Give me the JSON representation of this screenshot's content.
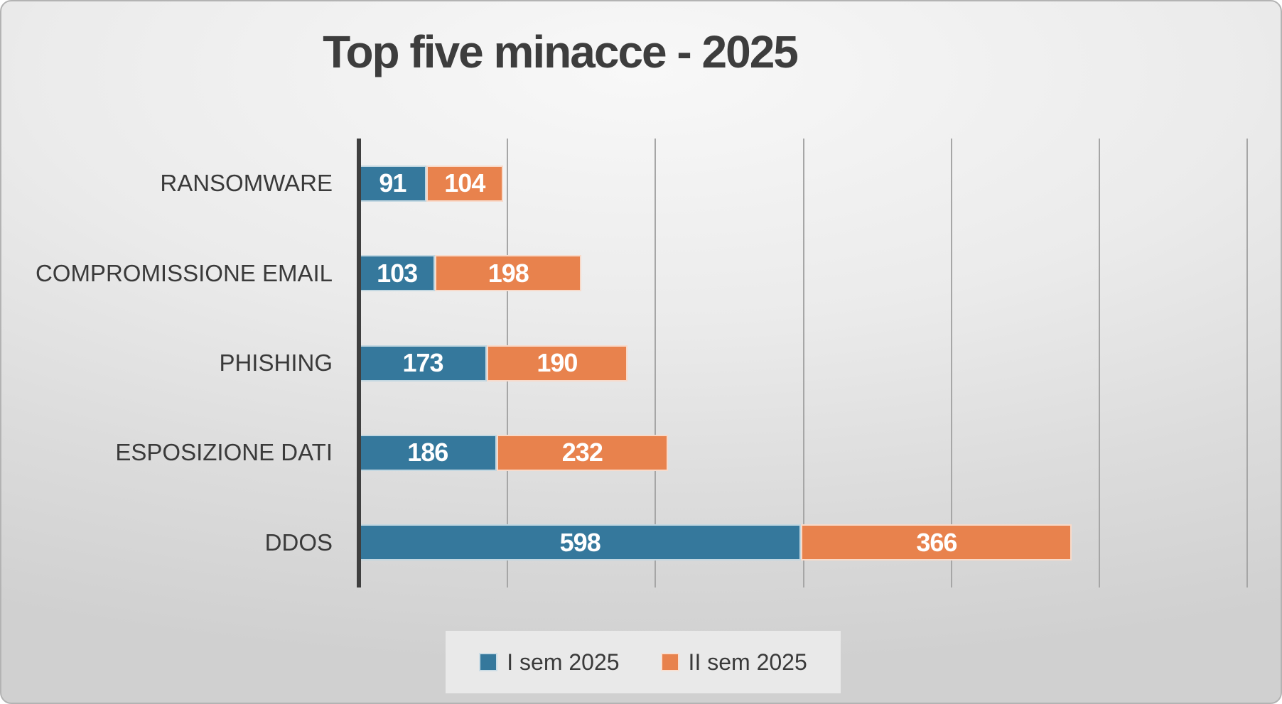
{
  "title": "Top five minacce - 2025",
  "colors": {
    "series1": "#35789C",
    "series2": "#E8824D",
    "axis": "#3F3F3F",
    "gridline": "#A6A6A6",
    "title_text": "#3D3D3D",
    "category_text": "#3A3A3A",
    "value_text": "#FFFFFF",
    "legend_background": "#E9E9E9"
  },
  "chart_data": {
    "type": "bar",
    "orientation": "horizontal",
    "stacked": true,
    "title": "Top five minacce - 2025",
    "categories": [
      "RANSOMWARE",
      "COMPROMISSIONE EMAIL",
      "PHISHING",
      "ESPOSIZIONE DATI",
      "DDOS"
    ],
    "series": [
      {
        "name": "I sem 2025",
        "color": "#35789C",
        "values": [
          91,
          103,
          173,
          186,
          598
        ]
      },
      {
        "name": "II sem 2025",
        "color": "#E8824D",
        "values": [
          104,
          198,
          190,
          232,
          366
        ]
      }
    ],
    "xlim": [
      0,
      1200
    ],
    "grid_interval": 200,
    "grid": true,
    "data_labels": true,
    "legend_position": "bottom",
    "xlabel": "",
    "ylabel": ""
  },
  "legend": {
    "items": [
      {
        "label": "I sem 2025",
        "color": "#35789C"
      },
      {
        "label": "II sem 2025",
        "color": "#E8824D"
      }
    ]
  }
}
